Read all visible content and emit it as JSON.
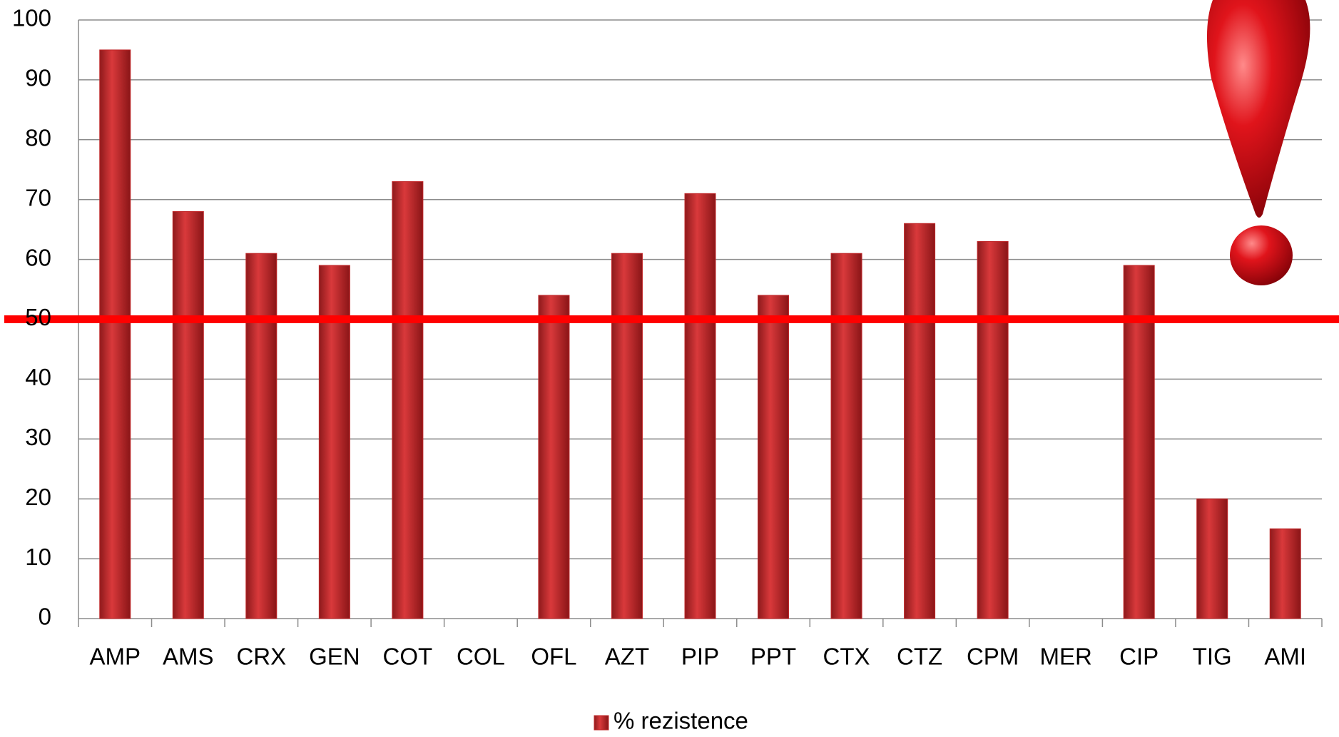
{
  "chart_data": {
    "type": "bar",
    "categories": [
      "AMP",
      "AMS",
      "CRX",
      "GEN",
      "COT",
      "COL",
      "OFL",
      "AZT",
      "PIP",
      "PPT",
      "CTX",
      "CTZ",
      "CPM",
      "MER",
      "CIP",
      "TIG",
      "AMI"
    ],
    "series": [
      {
        "name": "% rezistence",
        "color": "#c0282a",
        "values": [
          95,
          68,
          61,
          59,
          73,
          0,
          54,
          61,
          71,
          54,
          61,
          66,
          63,
          0,
          59,
          20,
          15
        ]
      }
    ],
    "ylim": [
      0,
      100
    ],
    "yticks": [
      0,
      10,
      20,
      30,
      40,
      50,
      60,
      70,
      80,
      90,
      100
    ],
    "grid": true,
    "reference_line": {
      "value": 50,
      "color": "#ff0000"
    },
    "legend": "bottom"
  }
}
